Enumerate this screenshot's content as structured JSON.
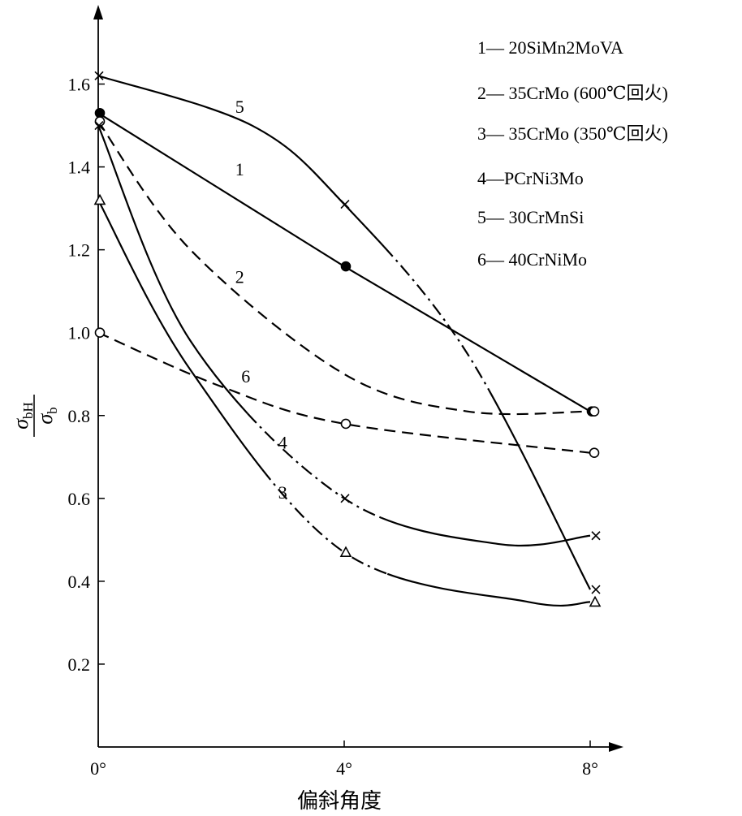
{
  "chart_data": {
    "type": "line",
    "xlabel": "偏斜角度",
    "ylabel_main": "σ",
    "ylabel_sub_num": "bH",
    "ylabel_sub_den": "b",
    "x_ticks": [
      {
        "value": 0,
        "label": "0°"
      },
      {
        "value": 4,
        "label": "4°"
      },
      {
        "value": 8,
        "label": "8°"
      }
    ],
    "y_ticks": [
      {
        "value": 0.2,
        "label": "0.2"
      },
      {
        "value": 0.4,
        "label": "0.4"
      },
      {
        "value": 0.6,
        "label": "0.6"
      },
      {
        "value": 0.8,
        "label": "0.8"
      },
      {
        "value": 1.0,
        "label": "1.0"
      },
      {
        "value": 1.2,
        "label": "1.2"
      },
      {
        "value": 1.4,
        "label": "1.4"
      },
      {
        "value": 1.6,
        "label": "1.6"
      }
    ],
    "xlim": [
      0,
      8.6
    ],
    "ylim": [
      0,
      1.78
    ],
    "grid": false,
    "legend_position": "top-right",
    "legend": [
      "1— 20SiMn2MoVA",
      "2— 35CrMo (600℃回火)",
      "3— 35CrMo (350℃回火)",
      "4—PCrNi3Mo",
      "5— 30CrMnSi",
      "6— 40CrNiMo"
    ],
    "series": [
      {
        "label": "1",
        "marker": "filled-circle",
        "segments": [
          "solid"
        ],
        "points": [
          [
            0,
            1.53
          ],
          [
            4,
            1.16
          ],
          [
            8,
            0.81
          ]
        ],
        "label_at": [
          2.3,
          1.38
        ]
      },
      {
        "label": "2",
        "marker": "circle",
        "segments": [
          "dashed"
        ],
        "points": [
          [
            0,
            1.51
          ],
          [
            1.5,
            1.2
          ],
          [
            4,
            0.9
          ],
          [
            6,
            0.81
          ],
          [
            8,
            0.81
          ]
        ],
        "label_at": [
          2.3,
          1.12
        ]
      },
      {
        "label": "3",
        "marker": "triangle",
        "segments": [
          "solid",
          "dashdot",
          "solid"
        ],
        "points": [
          [
            0,
            1.32
          ],
          [
            1.5,
            0.91
          ],
          [
            4,
            0.47
          ],
          [
            7,
            0.35
          ],
          [
            8,
            0.35
          ]
        ],
        "label_at": [
          3.0,
          0.6
        ]
      },
      {
        "label": "4",
        "marker": "cross",
        "segments": [
          "solid",
          "dashdot",
          "solid"
        ],
        "points": [
          [
            0,
            1.5
          ],
          [
            1.5,
            0.98
          ],
          [
            4,
            0.6
          ],
          [
            6.5,
            0.49
          ],
          [
            8,
            0.51
          ]
        ],
        "label_at": [
          3.0,
          0.72
        ]
      },
      {
        "label": "5",
        "marker": "cross",
        "segments": [
          "solid",
          "dashdot",
          "solid"
        ],
        "points": [
          [
            0,
            1.62
          ],
          [
            2.5,
            1.5
          ],
          [
            4,
            1.31
          ],
          [
            6,
            0.95
          ],
          [
            8,
            0.38
          ]
        ],
        "label_at": [
          2.3,
          1.53
        ]
      },
      {
        "label": "6",
        "marker": "circle",
        "segments": [
          "dashed"
        ],
        "points": [
          [
            0,
            1.0
          ],
          [
            2,
            0.87
          ],
          [
            4,
            0.78
          ],
          [
            8,
            0.71
          ]
        ],
        "label_at": [
          2.4,
          0.88
        ]
      }
    ]
  }
}
